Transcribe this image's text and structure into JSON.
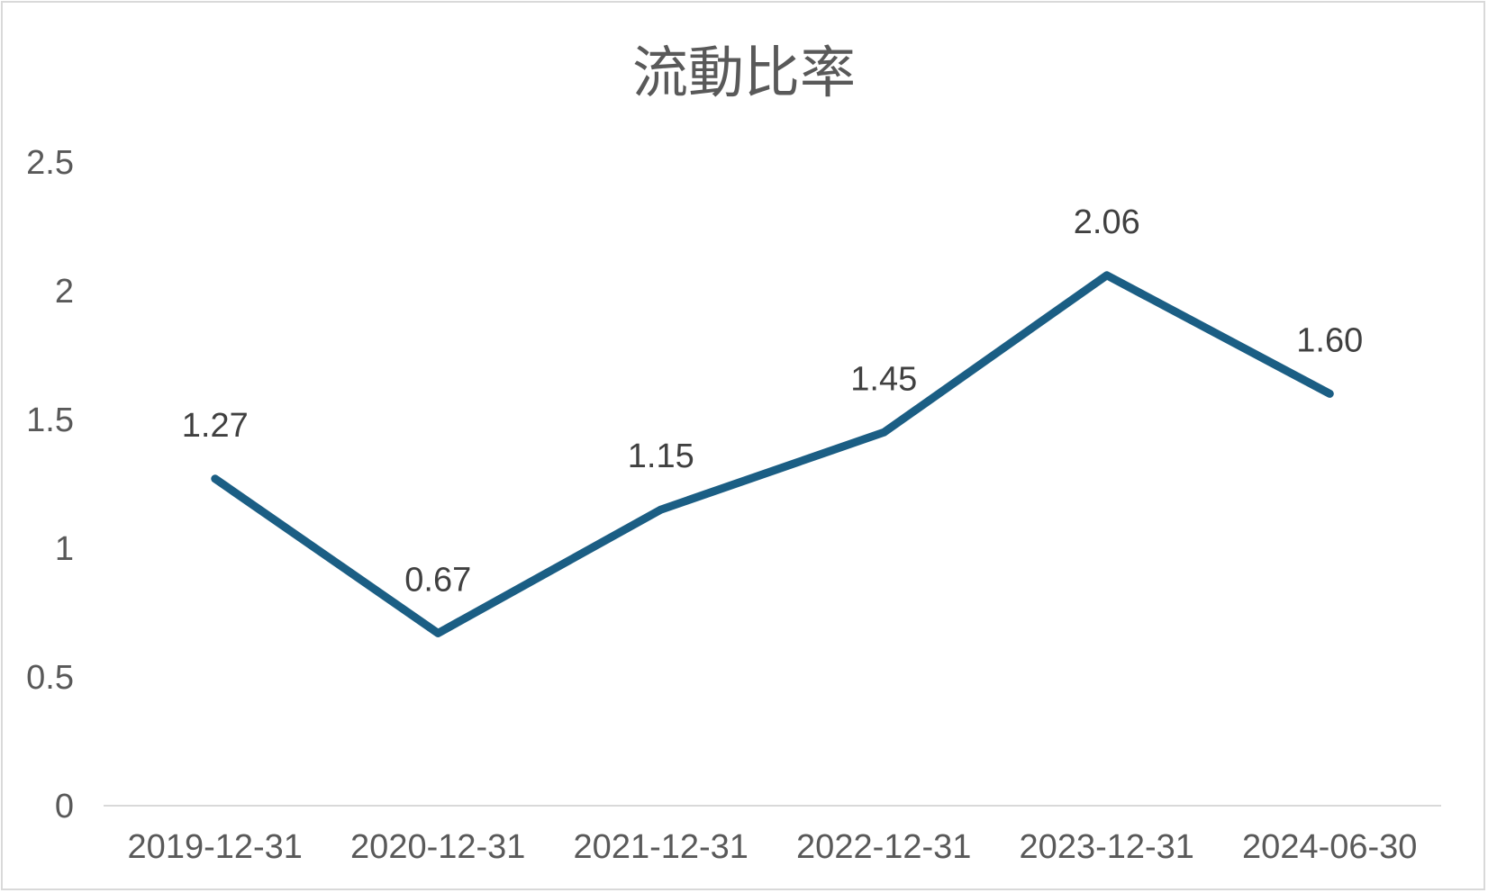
{
  "chart_data": {
    "type": "line",
    "title": "流動比率",
    "categories": [
      "2019-12-31",
      "2020-12-31",
      "2021-12-31",
      "2022-12-31",
      "2023-12-31",
      "2024-06-30"
    ],
    "series": [
      {
        "values": [
          1.27,
          0.67,
          1.15,
          1.45,
          2.06,
          1.6
        ],
        "data_labels": [
          "1.27",
          "0.67",
          "1.15",
          "1.45",
          "2.06",
          "1.60"
        ],
        "color": "#1b5e84"
      }
    ],
    "y_ticks": [
      "0",
      "0.5",
      "1",
      "1.5",
      "2",
      "2.5"
    ],
    "ylim": [
      0,
      2.5
    ],
    "xlabel": "",
    "ylabel": "",
    "grid": false,
    "legend": "none"
  }
}
